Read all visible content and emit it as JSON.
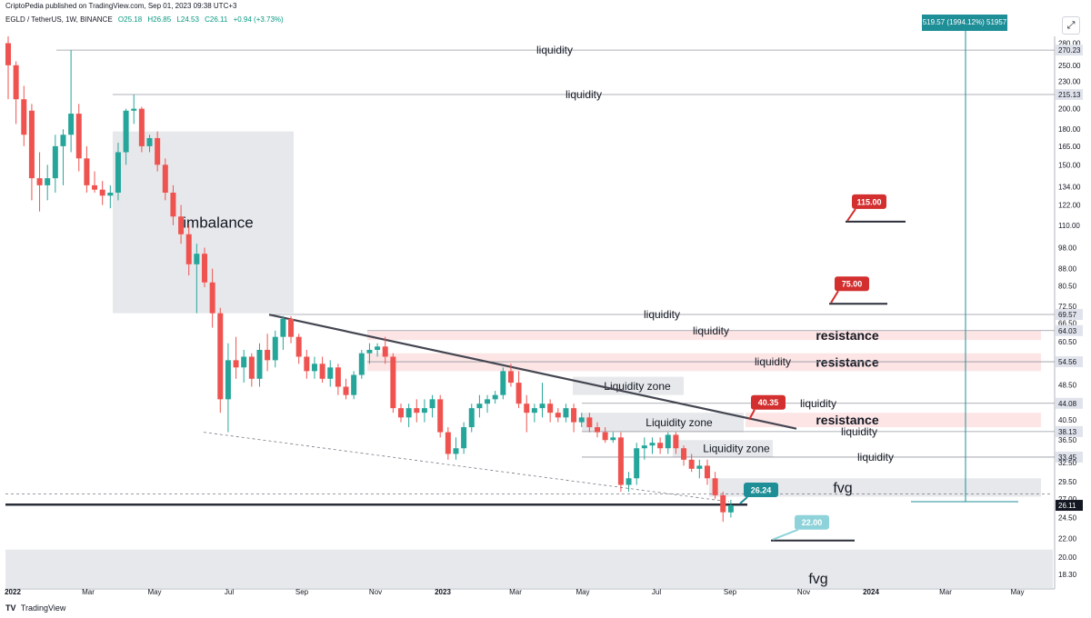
{
  "header": {
    "published": "CriptoPedia published on TradingView.com, Sep 01, 2023 09:38 UTC+3",
    "symbol": "EGLD / TetherUS, 1W, BINANCE",
    "open": "O25.18",
    "high": "H26.85",
    "low": "L24.53",
    "close": "C26.11",
    "change": "+0.94 (+3.73%)"
  },
  "footer": {
    "brand": "TradingView",
    "logo": "TV"
  },
  "measure_label": "519.57 (1994.12%) 51957",
  "colors": {
    "bull": "#26a69a",
    "bear": "#ef5350",
    "zone_gray": "#d9dbe0",
    "zone_pink": "#fde2e2",
    "accent_teal": "#1e8e97",
    "accent_red": "#d32f2f"
  },
  "chart_data": {
    "type": "candlestick",
    "y_scale": "log",
    "ylim": [
      17,
      290
    ],
    "y_ticks": [
      "280.00",
      "270.23",
      "250.00",
      "230.00",
      "215.13",
      "200.00",
      "180.00",
      "165.00",
      "150.00",
      "134.00",
      "122.00",
      "110.00",
      "98.00",
      "88.00",
      "80.50",
      "72.50",
      "69.57",
      "66.50",
      "64.03",
      "60.50",
      "54.56",
      "48.50",
      "44.08",
      "40.50",
      "38.13",
      "36.50",
      "33.45",
      "32.50",
      "29.50",
      "27.00",
      "26.11",
      "24.50",
      "22.00",
      "20.00",
      "18.30"
    ],
    "x_labels": [
      "2022",
      "Mar",
      "May",
      "Jul",
      "Sep",
      "Nov",
      "2023",
      "Mar",
      "May",
      "Jul",
      "Sep",
      "Nov",
      "2024",
      "Mar",
      "May"
    ],
    "candles": [
      {
        "o": 280,
        "h": 290,
        "l": 210,
        "c": 250
      },
      {
        "o": 250,
        "h": 255,
        "l": 185,
        "c": 210
      },
      {
        "o": 210,
        "h": 225,
        "l": 165,
        "c": 175
      },
      {
        "o": 198,
        "h": 205,
        "l": 125,
        "c": 140
      },
      {
        "o": 140,
        "h": 160,
        "l": 118,
        "c": 135
      },
      {
        "o": 135,
        "h": 150,
        "l": 125,
        "c": 140
      },
      {
        "o": 140,
        "h": 175,
        "l": 130,
        "c": 165
      },
      {
        "o": 165,
        "h": 180,
        "l": 135,
        "c": 175
      },
      {
        "o": 175,
        "h": 270,
        "l": 160,
        "c": 195
      },
      {
        "o": 195,
        "h": 205,
        "l": 145,
        "c": 155
      },
      {
        "o": 155,
        "h": 165,
        "l": 130,
        "c": 135
      },
      {
        "o": 135,
        "h": 145,
        "l": 130,
        "c": 132
      },
      {
        "o": 132,
        "h": 138,
        "l": 122,
        "c": 128
      },
      {
        "o": 128,
        "h": 135,
        "l": 120,
        "c": 130
      },
      {
        "o": 130,
        "h": 168,
        "l": 125,
        "c": 160
      },
      {
        "o": 160,
        "h": 200,
        "l": 150,
        "c": 198
      },
      {
        "o": 198,
        "h": 215,
        "l": 185,
        "c": 200
      },
      {
        "o": 200,
        "h": 202,
        "l": 160,
        "c": 165
      },
      {
        "o": 165,
        "h": 175,
        "l": 160,
        "c": 172
      },
      {
        "o": 172,
        "h": 178,
        "l": 145,
        "c": 150
      },
      {
        "o": 150,
        "h": 155,
        "l": 125,
        "c": 130
      },
      {
        "o": 130,
        "h": 135,
        "l": 110,
        "c": 115
      },
      {
        "o": 115,
        "h": 122,
        "l": 100,
        "c": 105
      },
      {
        "o": 105,
        "h": 110,
        "l": 85,
        "c": 90
      },
      {
        "o": 90,
        "h": 100,
        "l": 70,
        "c": 95
      },
      {
        "o": 95,
        "h": 98,
        "l": 80,
        "c": 82
      },
      {
        "o": 82,
        "h": 88,
        "l": 65,
        "c": 70
      },
      {
        "o": 70,
        "h": 72,
        "l": 42,
        "c": 45
      },
      {
        "o": 45,
        "h": 60,
        "l": 38,
        "c": 55
      },
      {
        "o": 55,
        "h": 62,
        "l": 50,
        "c": 53
      },
      {
        "o": 53,
        "h": 58,
        "l": 49,
        "c": 56
      },
      {
        "o": 56,
        "h": 57,
        "l": 48,
        "c": 50
      },
      {
        "o": 50,
        "h": 60,
        "l": 48,
        "c": 58
      },
      {
        "o": 58,
        "h": 63,
        "l": 52,
        "c": 55
      },
      {
        "o": 55,
        "h": 64,
        "l": 53,
        "c": 62
      },
      {
        "o": 62,
        "h": 69,
        "l": 58,
        "c": 68
      },
      {
        "o": 68,
        "h": 69,
        "l": 60,
        "c": 62
      },
      {
        "o": 62,
        "h": 63,
        "l": 54,
        "c": 56
      },
      {
        "o": 56,
        "h": 58,
        "l": 50,
        "c": 52
      },
      {
        "o": 52,
        "h": 56,
        "l": 50,
        "c": 54
      },
      {
        "o": 54,
        "h": 56,
        "l": 49,
        "c": 50
      },
      {
        "o": 50,
        "h": 55,
        "l": 48,
        "c": 53
      },
      {
        "o": 53,
        "h": 54,
        "l": 46,
        "c": 48
      },
      {
        "o": 48,
        "h": 50,
        "l": 45,
        "c": 46
      },
      {
        "o": 46,
        "h": 52,
        "l": 45,
        "c": 51
      },
      {
        "o": 51,
        "h": 58,
        "l": 50,
        "c": 57
      },
      {
        "o": 57,
        "h": 60,
        "l": 54,
        "c": 58
      },
      {
        "o": 58,
        "h": 60,
        "l": 56,
        "c": 59
      },
      {
        "o": 59,
        "h": 62,
        "l": 54,
        "c": 56
      },
      {
        "o": 56,
        "h": 57,
        "l": 42,
        "c": 43
      },
      {
        "o": 43,
        "h": 44,
        "l": 40,
        "c": 41
      },
      {
        "o": 41,
        "h": 44,
        "l": 39,
        "c": 43
      },
      {
        "o": 43,
        "h": 45,
        "l": 40,
        "c": 42
      },
      {
        "o": 42,
        "h": 45,
        "l": 40,
        "c": 43
      },
      {
        "o": 43,
        "h": 46,
        "l": 41,
        "c": 45
      },
      {
        "o": 45,
        "h": 46,
        "l": 37,
        "c": 38
      },
      {
        "o": 38,
        "h": 39,
        "l": 33,
        "c": 34
      },
      {
        "o": 34,
        "h": 37,
        "l": 33,
        "c": 35
      },
      {
        "o": 35,
        "h": 40,
        "l": 34,
        "c": 39
      },
      {
        "o": 39,
        "h": 44,
        "l": 38,
        "c": 43
      },
      {
        "o": 43,
        "h": 46,
        "l": 41,
        "c": 44
      },
      {
        "o": 44,
        "h": 46,
        "l": 42,
        "c": 45
      },
      {
        "o": 45,
        "h": 47,
        "l": 44,
        "c": 46
      },
      {
        "o": 46,
        "h": 53,
        "l": 45,
        "c": 52
      },
      {
        "o": 52,
        "h": 54,
        "l": 48,
        "c": 49
      },
      {
        "o": 49,
        "h": 52,
        "l": 43,
        "c": 44
      },
      {
        "o": 44,
        "h": 46,
        "l": 38,
        "c": 42
      },
      {
        "o": 42,
        "h": 44,
        "l": 40,
        "c": 43
      },
      {
        "o": 43,
        "h": 49,
        "l": 41,
        "c": 44
      },
      {
        "o": 44,
        "h": 45,
        "l": 40,
        "c": 42
      },
      {
        "o": 42,
        "h": 43,
        "l": 40,
        "c": 41
      },
      {
        "o": 41,
        "h": 44,
        "l": 40,
        "c": 43
      },
      {
        "o": 43,
        "h": 44,
        "l": 38,
        "c": 40
      },
      {
        "o": 40,
        "h": 42,
        "l": 39,
        "c": 41
      },
      {
        "o": 41,
        "h": 42,
        "l": 38,
        "c": 39
      },
      {
        "o": 39,
        "h": 40,
        "l": 37,
        "c": 38
      },
      {
        "o": 38,
        "h": 39,
        "l": 36,
        "c": 36.5
      },
      {
        "o": 36.5,
        "h": 38,
        "l": 36,
        "c": 37
      },
      {
        "o": 37,
        "h": 38,
        "l": 28,
        "c": 29
      },
      {
        "o": 29,
        "h": 31,
        "l": 28,
        "c": 30
      },
      {
        "o": 30,
        "h": 36,
        "l": 29,
        "c": 35
      },
      {
        "o": 35,
        "h": 37,
        "l": 33,
        "c": 35.5
      },
      {
        "o": 35.5,
        "h": 37,
        "l": 34,
        "c": 36
      },
      {
        "o": 36,
        "h": 37,
        "l": 34,
        "c": 35
      },
      {
        "o": 35,
        "h": 38,
        "l": 34,
        "c": 37.5
      },
      {
        "o": 37.5,
        "h": 38,
        "l": 34,
        "c": 35
      },
      {
        "o": 35,
        "h": 35.5,
        "l": 32,
        "c": 33
      },
      {
        "o": 33,
        "h": 34,
        "l": 31,
        "c": 31.5
      },
      {
        "o": 31.5,
        "h": 33,
        "l": 30,
        "c": 32
      },
      {
        "o": 32,
        "h": 33,
        "l": 29,
        "c": 30
      },
      {
        "o": 30,
        "h": 31,
        "l": 27,
        "c": 27.5
      },
      {
        "o": 27.5,
        "h": 28,
        "l": 24,
        "c": 25.2
      },
      {
        "o": 25.18,
        "h": 26.85,
        "l": 24.53,
        "c": 26.11
      }
    ],
    "horizontal_levels": [
      {
        "price": 270.23,
        "label": "liquidity"
      },
      {
        "price": 215.13,
        "label": "liquidity"
      },
      {
        "price": 69.57,
        "label": "liquidity"
      },
      {
        "price": 64.03,
        "label": "liquidity"
      },
      {
        "price": 54.56,
        "label": "liquidity"
      },
      {
        "price": 44.08,
        "label": "liquidity"
      },
      {
        "price": 38.13,
        "label": "liquidity"
      },
      {
        "price": 33.45,
        "label": "liquidity"
      }
    ],
    "zones": [
      {
        "label": "imbalance",
        "from": 70,
        "to": 178,
        "type": "gray"
      },
      {
        "label": "resistance",
        "from": 61,
        "to": 64,
        "type": "pink"
      },
      {
        "label": "resistance",
        "from": 52,
        "to": 57,
        "type": "pink"
      },
      {
        "label": "resistance",
        "from": 39,
        "to": 42,
        "type": "pink"
      },
      {
        "label": "Liquidity zone",
        "from": 46,
        "to": 50.5,
        "type": "gray"
      },
      {
        "label": "Liquidity zone",
        "from": 38,
        "to": 42,
        "type": "gray"
      },
      {
        "label": "Liquidity zone",
        "from": 33.5,
        "to": 36.5,
        "type": "gray"
      },
      {
        "label": "fvg",
        "from": 27.3,
        "to": 30,
        "type": "gray"
      },
      {
        "label": "fvg",
        "from": 17,
        "to": 20.8,
        "type": "gray"
      }
    ],
    "targets": [
      {
        "label": "115.00",
        "price": 112,
        "color": "red"
      },
      {
        "label": "75.00",
        "price": 73.5,
        "color": "red"
      },
      {
        "label": "40.35",
        "price": 40.35,
        "color": "red"
      },
      {
        "label": "26.24",
        "price": 26.24,
        "color": "teal"
      },
      {
        "label": "22.00",
        "price": 21.8,
        "color": "light-teal"
      }
    ],
    "current_price": "26.11"
  }
}
